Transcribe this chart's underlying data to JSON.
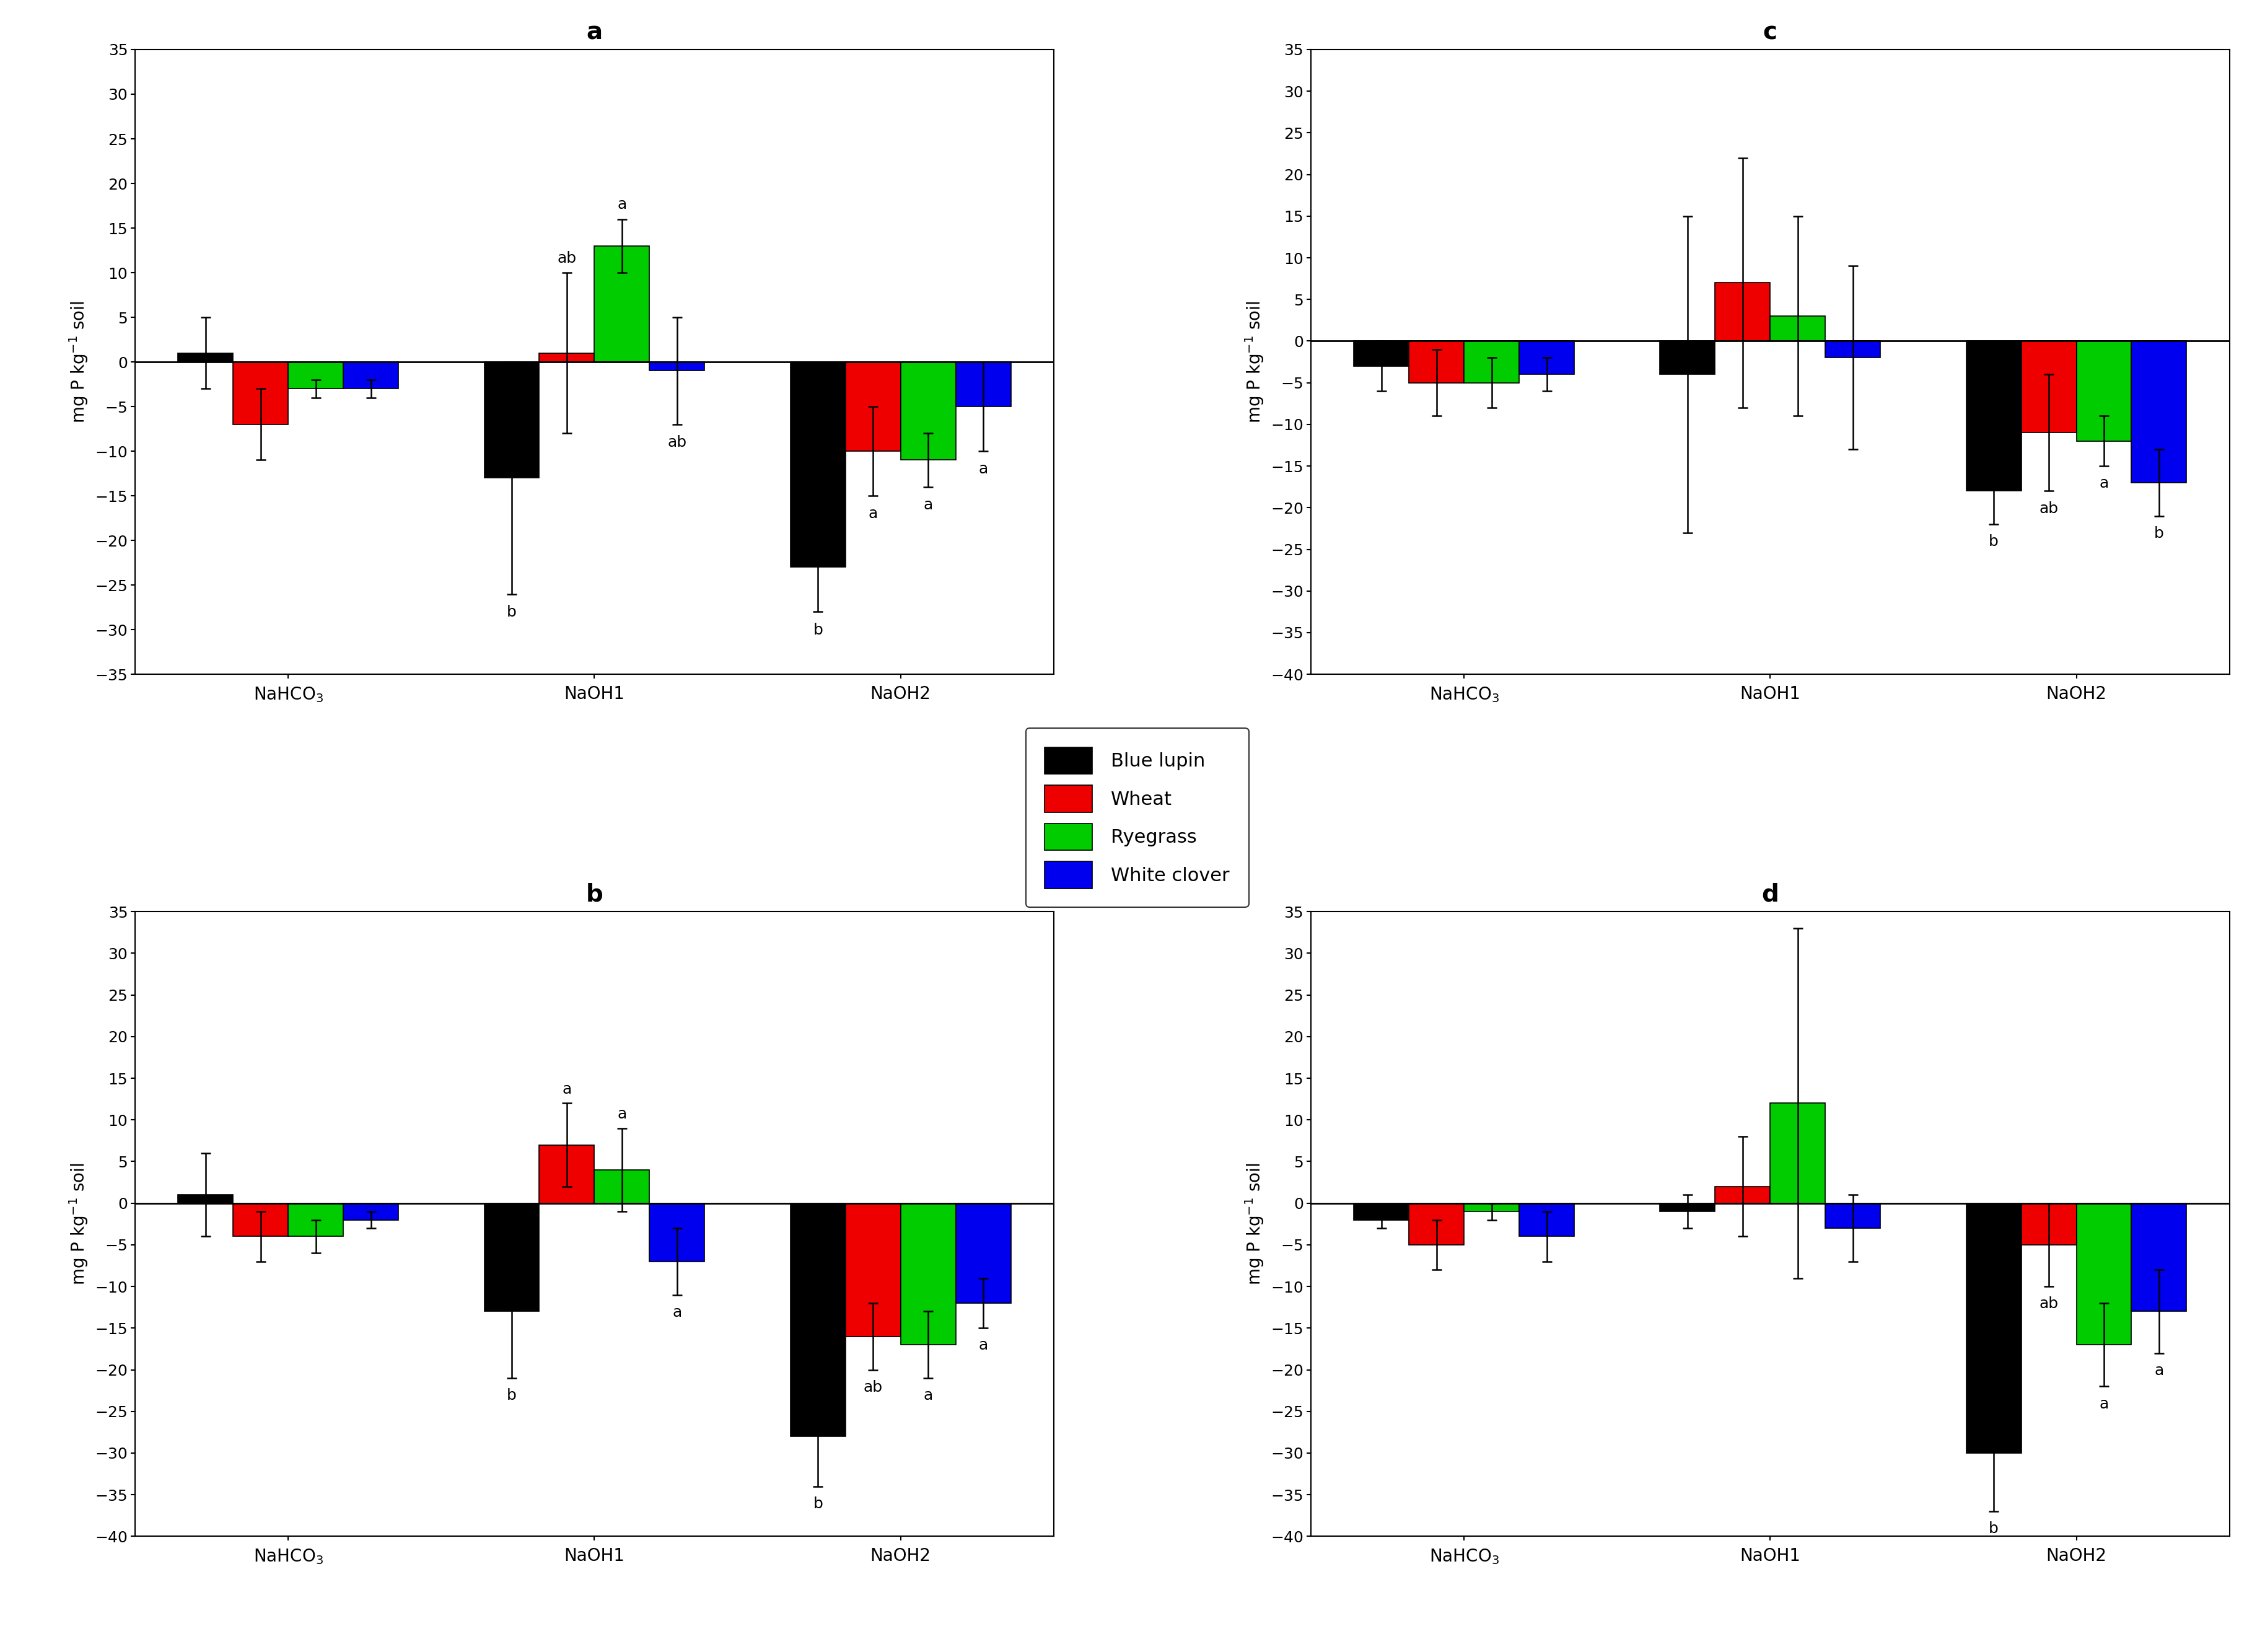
{
  "panels": {
    "a": {
      "title": "a",
      "ylim": [
        -35,
        35
      ],
      "yticks": [
        -35,
        -30,
        -25,
        -20,
        -15,
        -10,
        -5,
        0,
        5,
        10,
        15,
        20,
        25,
        30,
        35
      ],
      "groups": [
        "NaHCO$_3$",
        "NaOH1",
        "NaOH2"
      ],
      "values": {
        "black": [
          1,
          -13,
          -23
        ],
        "red": [
          -7,
          1,
          -10
        ],
        "green": [
          -3,
          13,
          -11
        ],
        "blue": [
          -3,
          -1,
          -5
        ]
      },
      "errors": {
        "black": [
          4,
          13,
          5
        ],
        "red": [
          4,
          9,
          5
        ],
        "green": [
          1,
          3,
          3
        ],
        "blue": [
          1,
          6,
          5
        ]
      },
      "sig_labels": {
        "NaHCO3": {
          "black": "",
          "red": "",
          "green": "",
          "blue": ""
        },
        "NaOH1": {
          "black": "b",
          "red": "ab",
          "green": "a",
          "blue": "ab"
        },
        "NaOH2": {
          "black": "b",
          "red": "a",
          "green": "a",
          "blue": "a"
        }
      }
    },
    "b": {
      "title": "b",
      "ylim": [
        -40,
        35
      ],
      "yticks": [
        -40,
        -35,
        -30,
        -25,
        -20,
        -15,
        -10,
        -5,
        0,
        5,
        10,
        15,
        20,
        25,
        30,
        35
      ],
      "groups": [
        "NaHCO$_3$",
        "NaOH1",
        "NaOH2"
      ],
      "values": {
        "black": [
          1,
          -13,
          -28
        ],
        "red": [
          -4,
          7,
          -16
        ],
        "green": [
          -4,
          4,
          -17
        ],
        "blue": [
          -2,
          -7,
          -12
        ]
      },
      "errors": {
        "black": [
          5,
          8,
          6
        ],
        "red": [
          3,
          5,
          4
        ],
        "green": [
          2,
          5,
          4
        ],
        "blue": [
          1,
          4,
          3
        ]
      },
      "sig_labels": {
        "NaHCO3": {
          "black": "",
          "red": "",
          "green": "",
          "blue": ""
        },
        "NaOH1": {
          "black": "b",
          "red": "a",
          "green": "a",
          "blue": "a"
        },
        "NaOH2": {
          "black": "b",
          "red": "ab",
          "green": "a",
          "blue": "a"
        }
      }
    },
    "c": {
      "title": "c",
      "ylim": [
        -40,
        35
      ],
      "yticks": [
        -40,
        -35,
        -30,
        -25,
        -20,
        -15,
        -10,
        -5,
        0,
        5,
        10,
        15,
        20,
        25,
        30,
        35
      ],
      "groups": [
        "NaHCO$_3$",
        "NaOH1",
        "NaOH2"
      ],
      "values": {
        "black": [
          -3,
          -4,
          -18
        ],
        "red": [
          -5,
          7,
          -11
        ],
        "green": [
          -5,
          3,
          -12
        ],
        "blue": [
          -4,
          -2,
          -17
        ]
      },
      "errors": {
        "black": [
          3,
          19,
          4
        ],
        "red": [
          4,
          15,
          7
        ],
        "green": [
          3,
          12,
          3
        ],
        "blue": [
          2,
          11,
          4
        ]
      },
      "sig_labels": {
        "NaHCO3": {
          "black": "",
          "red": "",
          "green": "",
          "blue": ""
        },
        "NaOH1": {
          "black": "",
          "red": "",
          "green": "",
          "blue": ""
        },
        "NaOH2": {
          "black": "b",
          "red": "ab",
          "green": "a",
          "blue": "b"
        }
      }
    },
    "d": {
      "title": "d",
      "ylim": [
        -40,
        35
      ],
      "yticks": [
        -40,
        -35,
        -30,
        -25,
        -20,
        -15,
        -10,
        -5,
        0,
        5,
        10,
        15,
        20,
        25,
        30,
        35
      ],
      "groups": [
        "NaHCO$_3$",
        "NaOH1",
        "NaOH2"
      ],
      "values": {
        "black": [
          -2,
          -1,
          -30
        ],
        "red": [
          -5,
          2,
          -5
        ],
        "green": [
          -1,
          12,
          -17
        ],
        "blue": [
          -4,
          -3,
          -13
        ]
      },
      "errors": {
        "black": [
          1,
          2,
          7
        ],
        "red": [
          3,
          6,
          5
        ],
        "green": [
          1,
          21,
          5
        ],
        "blue": [
          3,
          4,
          5
        ]
      },
      "sig_labels": {
        "NaHCO3": {
          "black": "",
          "red": "",
          "green": "",
          "blue": ""
        },
        "NaOH1": {
          "black": "",
          "red": "",
          "green": "",
          "blue": ""
        },
        "NaOH2": {
          "black": "b",
          "red": "ab",
          "green": "a",
          "blue": "a"
        }
      }
    }
  },
  "colors": {
    "black": "#000000",
    "red": "#ee0000",
    "green": "#00cc00",
    "blue": "#0000ee"
  },
  "legend": {
    "labels": [
      "Blue lupin",
      "Wheat",
      "Ryegrass",
      "White clover"
    ],
    "colors": [
      "#000000",
      "#ee0000",
      "#00cc00",
      "#0000ee"
    ]
  },
  "ylabel": "mg P kg$^{-1}$ soil",
  "bar_width": 0.18,
  "group_positions": [
    1.0,
    2.0,
    3.0
  ],
  "offsets": [
    -0.27,
    -0.09,
    0.09,
    0.27
  ]
}
